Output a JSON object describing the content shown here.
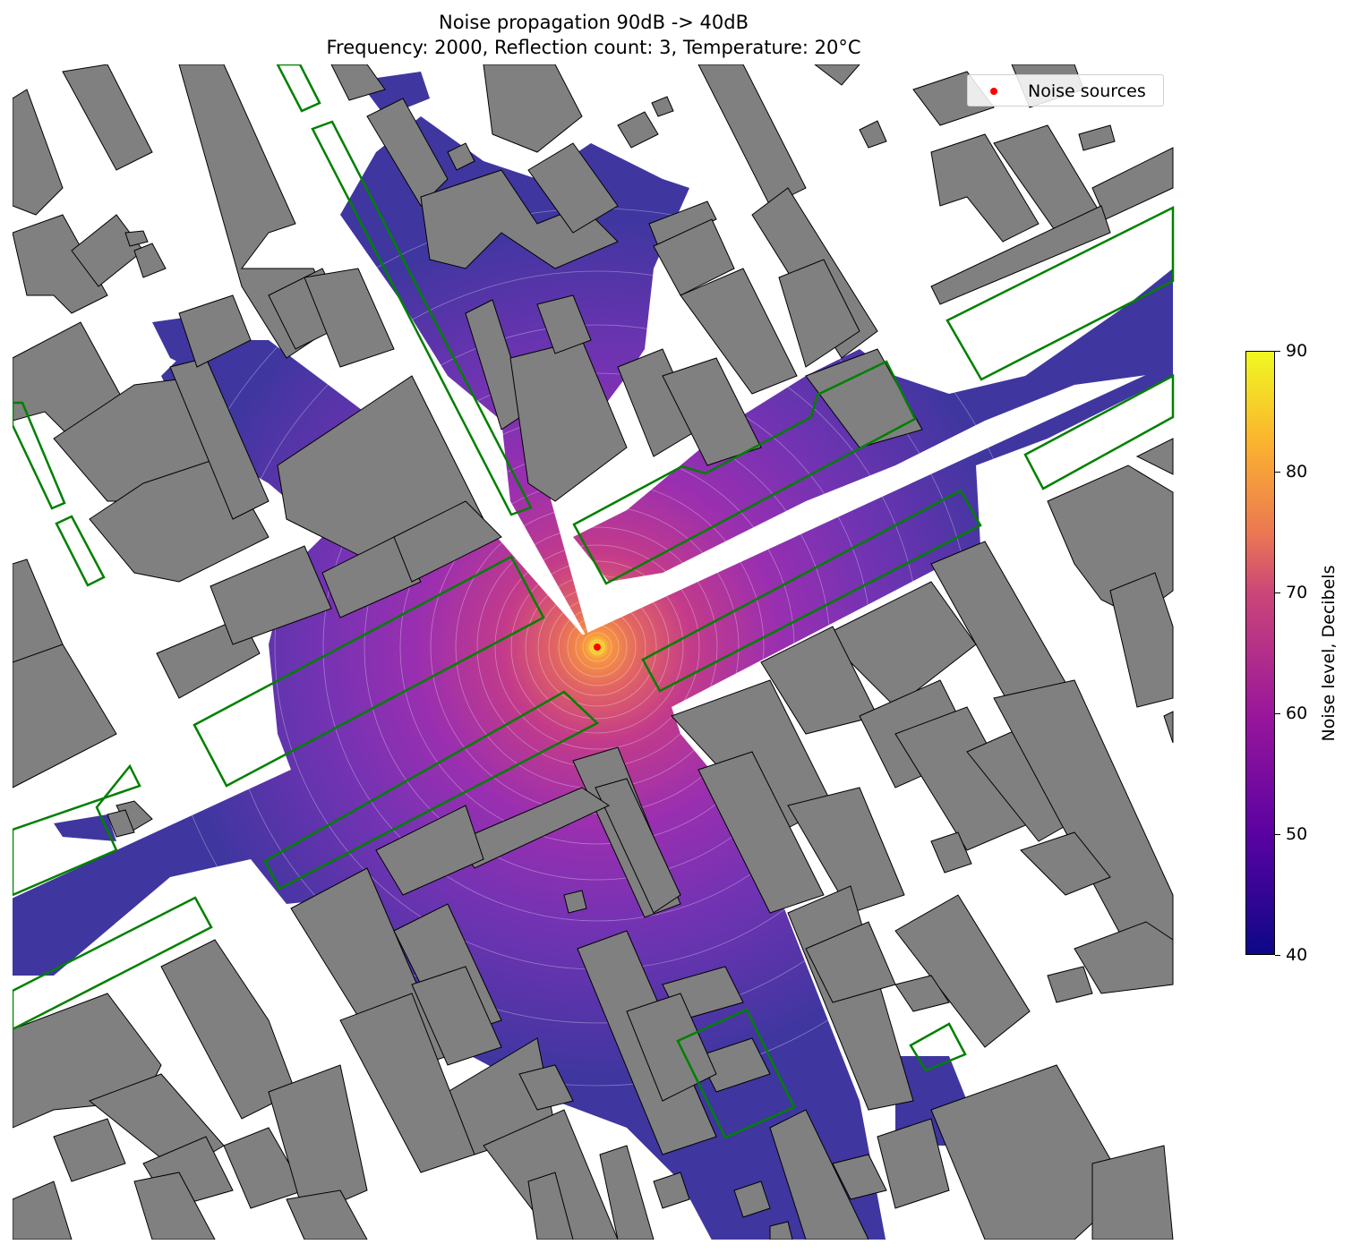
{
  "title_line1": "Noise propagation 90dB -> 40dB",
  "title_line2": "Frequency: 2000, Reflection count: 3, Temperature: 20°C",
  "legend": {
    "label": "Noise sources",
    "marker_color": "#ff0000"
  },
  "colorbar": {
    "label": "Noise level, Decibels",
    "min": 40,
    "max": 90,
    "ticks": [
      "40",
      "50",
      "60",
      "70",
      "80",
      "90"
    ],
    "colormap": "plasma"
  },
  "colors": {
    "building_fill": "#808080",
    "building_edge": "#000000",
    "zone_outline": "#008000",
    "noise_source": "#ff0000"
  },
  "noise_source": {
    "level_db": 90
  }
}
